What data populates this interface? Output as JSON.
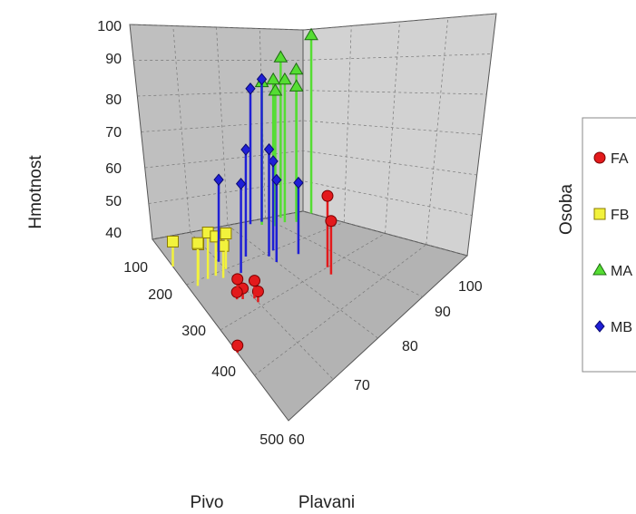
{
  "chart_data": {
    "type": "scatter",
    "subtype": "3d-scatter-with-drop-lines",
    "xlabel": "Pivo",
    "ylabel": "Plavani",
    "zlabel": "Hmotnost",
    "legend_title": "Osoba",
    "legend_position": "right",
    "grid": true,
    "axes": {
      "pivo": {
        "range": [
          100,
          500
        ],
        "ticks": [
          "100",
          "200",
          "300",
          "400",
          "500"
        ]
      },
      "plavani": {
        "range": [
          60,
          100
        ],
        "ticks": [
          "60",
          "70",
          "80",
          "90",
          "100"
        ]
      },
      "hmotnost": {
        "range": [
          40,
          100
        ],
        "ticks": [
          "40",
          "50",
          "60",
          "70",
          "80",
          "90",
          "100"
        ]
      }
    },
    "series": [
      {
        "name": "FA",
        "color": "#e31a1c",
        "marker": "circle",
        "points": [
          {
            "pivo": 300,
            "plavani": 86,
            "hmotnost": 60
          },
          {
            "pivo": 320,
            "plavani": 85,
            "hmotnost": 55
          },
          {
            "pivo": 290,
            "plavani": 70,
            "hmotnost": 43
          },
          {
            "pivo": 270,
            "plavani": 68,
            "hmotnost": 43
          },
          {
            "pivo": 265,
            "plavani": 67,
            "hmotnost": 42
          },
          {
            "pivo": 280,
            "plavani": 70,
            "hmotnost": 45
          },
          {
            "pivo": 255,
            "plavani": 68,
            "hmotnost": 44
          },
          {
            "pivo": 350,
            "plavani": 60,
            "hmotnost": 42
          }
        ]
      },
      {
        "name": "FB",
        "color": "#f2f23c",
        "marker": "square",
        "points": [
          {
            "pivo": 160,
            "plavani": 60,
            "hmotnost": 47
          },
          {
            "pivo": 200,
            "plavani": 63,
            "hmotnost": 50
          },
          {
            "pivo": 205,
            "plavani": 65,
            "hmotnost": 53
          },
          {
            "pivo": 210,
            "plavani": 62,
            "hmotnost": 52
          },
          {
            "pivo": 205,
            "plavani": 67,
            "hmotnost": 51
          },
          {
            "pivo": 215,
            "plavani": 68,
            "hmotnost": 49
          },
          {
            "pivo": 200,
            "plavani": 70,
            "hmotnost": 50
          }
        ]
      },
      {
        "name": "MA",
        "color": "#55dd33",
        "marker": "triangle",
        "points": [
          {
            "pivo": 130,
            "plavani": 95,
            "hmotnost": 82
          },
          {
            "pivo": 110,
            "plavani": 93,
            "hmotnost": 85
          },
          {
            "pivo": 130,
            "plavani": 92,
            "hmotnost": 80
          },
          {
            "pivo": 120,
            "plavani": 90,
            "hmotnost": 80
          },
          {
            "pivo": 140,
            "plavani": 94,
            "hmotnost": 78
          },
          {
            "pivo": 135,
            "plavani": 89,
            "hmotnost": 78
          },
          {
            "pivo": 120,
            "plavani": 87,
            "hmotnost": 80
          },
          {
            "pivo": 120,
            "plavani": 100,
            "hmotnost": 90
          }
        ]
      },
      {
        "name": "MB",
        "color": "#1f1fd6",
        "marker": "diamond",
        "points": [
          {
            "pivo": 200,
            "plavani": 82,
            "hmotnost": 65
          },
          {
            "pivo": 210,
            "plavani": 80,
            "hmotnost": 70
          },
          {
            "pivo": 190,
            "plavani": 76,
            "hmotnost": 70
          },
          {
            "pivo": 235,
            "plavani": 85,
            "hmotnost": 60
          },
          {
            "pivo": 230,
            "plavani": 80,
            "hmotnost": 63
          },
          {
            "pivo": 220,
            "plavani": 72,
            "hmotnost": 65
          },
          {
            "pivo": 180,
            "plavani": 70,
            "hmotnost": 63
          },
          {
            "pivo": 110,
            "plavani": 88,
            "hmotnost": 80
          },
          {
            "pivo": 110,
            "plavani": 85,
            "hmotnost": 78
          }
        ]
      }
    ]
  }
}
